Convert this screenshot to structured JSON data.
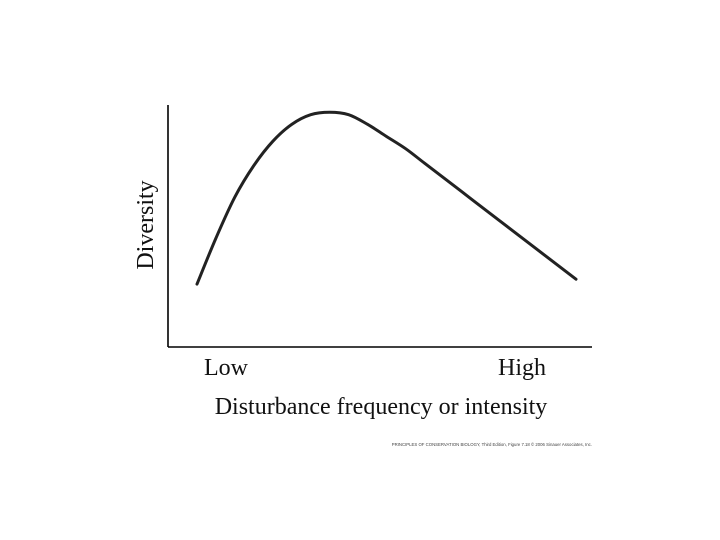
{
  "chart_data": {
    "type": "line",
    "title": "",
    "xlabel": "Disturbance frequency or intensity",
    "ylabel": "Diversity",
    "x_tick_labels": [
      "Low",
      "High"
    ],
    "xlim": [
      0,
      1
    ],
    "ylim": [
      0,
      1
    ],
    "grid": false,
    "series": [
      {
        "x": [
          0.0,
          0.05,
          0.1,
          0.15,
          0.2,
          0.25,
          0.3,
          0.35,
          0.4,
          0.45,
          0.5,
          0.55,
          0.6,
          0.65,
          0.7,
          0.75,
          0.8,
          0.85,
          0.9,
          0.95,
          1.0
        ],
        "values": [
          0.26,
          0.45,
          0.62,
          0.75,
          0.85,
          0.92,
          0.96,
          0.97,
          0.96,
          0.92,
          0.87,
          0.82,
          0.76,
          0.7,
          0.64,
          0.58,
          0.52,
          0.46,
          0.4,
          0.34,
          0.28
        ]
      }
    ],
    "colors": {
      "line": "#222222",
      "axis": "#000000"
    },
    "caption": "PRINCIPLES OF CONSERVATION BIOLOGY, Third Edition, Figure 7.18 © 2006 Sinauer Associates, Inc."
  }
}
